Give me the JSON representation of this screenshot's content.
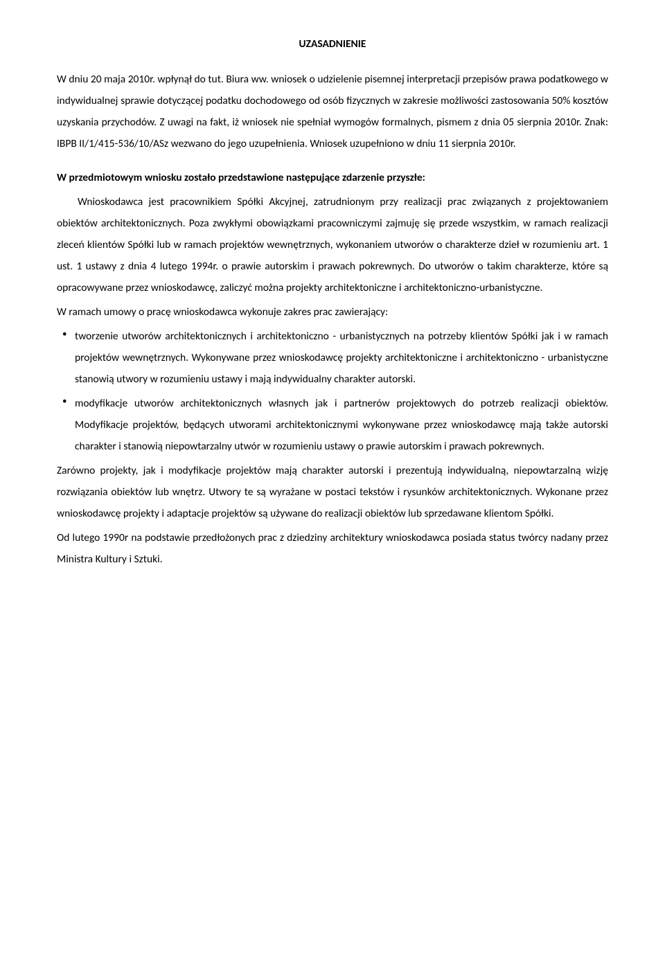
{
  "title": "UZASADNIENIE",
  "para1": "W dniu 20 maja 2010r. wpłynął do tut. Biura ww. wniosek o udzielenie pisemnej interpretacji przepisów prawa podatkowego w indywidualnej sprawie dotyczącej podatku dochodowego od osób fizycznych w zakresie możliwości zastosowania 50% kosztów uzyskania przychodów. Z uwagi na fakt, iż wniosek nie spełniał wymogów formalnych, pismem z dnia 05 sierpnia 2010r. Znak: IBPB II/1/415-536/10/ASz wezwano do jego uzupełnienia. Wniosek uzupełniono w dniu 11 sierpnia 2010r.",
  "heading2": "W przedmiotowym wniosku zostało przedstawione następujące zdarzenie przyszłe:",
  "para2": "Wnioskodawca jest pracownikiem Spółki Akcyjnej, zatrudnionym przy realizacji prac związanych z projektowaniem obiektów architektonicznych. Poza zwykłymi obowiązkami pracowniczymi zajmuję się przede wszystkim, w ramach realizacji zleceń klientów Spółki lub w ramach projektów wewnętrznych, wykonaniem utworów o charakterze dzieł w rozumieniu art. 1 ust. 1 ustawy z dnia 4 lutego 1994r. o prawie autorskim i prawach pokrewnych. Do utworów o takim charakterze, które są opracowywane przez wnioskodawcę, zaliczyć można projekty architektoniczne i architektoniczno-urbanistyczne.",
  "para3": "W ramach umowy o pracę wnioskodawca wykonuje zakres prac zawierający:",
  "bullet1": "tworzenie utworów architektonicznych i architektoniczno - urbanistycznych na potrzeby klientów Spółki jak i w ramach projektów wewnętrznych. Wykonywane przez wnioskodawcę projekty architektoniczne i architektoniczno - urbanistyczne stanowią utwory w rozumieniu ustawy i mają indywidualny charakter autorski.",
  "bullet2": "modyfikacje utworów architektonicznych własnych jak i partnerów projektowych do potrzeb realizacji obiektów. Modyfikacje projektów, będących utworami architektonicznymi wykonywane przez wnioskodawcę mają także autorski charakter i stanowią niepowtarzalny utwór w rozumieniu ustawy o prawie autorskim i prawach pokrewnych.",
  "para4": "Zarówno projekty, jak i modyfikacje projektów mają charakter autorski i prezentują indywidualną, niepowtarzalną wizję rozwiązania obiektów lub wnętrz. Utwory te są wyrażane w postaci tekstów i rysunków architektonicznych. Wykonane przez wnioskodawcę projekty i adaptacje projektów są używane do realizacji obiektów lub sprzedawane klientom Spółki.",
  "para5": "Od lutego 1990r na podstawie przedłożonych prac z dziedziny architektury wnioskodawca posiada status twórcy nadany przez Ministra Kultury i Sztuki."
}
